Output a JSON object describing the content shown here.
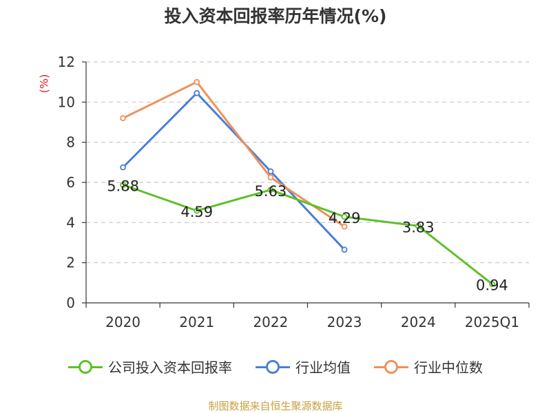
{
  "chart_data": {
    "type": "line",
    "title": "投入资本回报率历年情况(%)",
    "unit_label": "(%)",
    "categories": [
      "2020",
      "2021",
      "2022",
      "2023",
      "2024",
      "2025Q1"
    ],
    "ylim": [
      0,
      12
    ],
    "yticks": [
      0,
      2,
      4,
      6,
      8,
      10,
      12
    ],
    "grid": true,
    "legend_position": "bottom",
    "series": [
      {
        "name": "公司投入资本回报率",
        "color": "#5cc02a",
        "values": [
          5.88,
          4.59,
          5.63,
          4.29,
          3.83,
          0.94
        ],
        "labels": [
          "5.88",
          "4.59",
          "5.63",
          "4.29",
          "3.83",
          "0.94"
        ]
      },
      {
        "name": "行业均值",
        "color": "#4a7fd8",
        "values": [
          6.75,
          10.45,
          6.55,
          2.65,
          null,
          null
        ]
      },
      {
        "name": "行业中位数",
        "color": "#f0905a",
        "values": [
          9.2,
          11.0,
          6.25,
          3.8,
          null,
          null
        ]
      }
    ]
  },
  "source": "制图数据来自恒生聚源数据库"
}
